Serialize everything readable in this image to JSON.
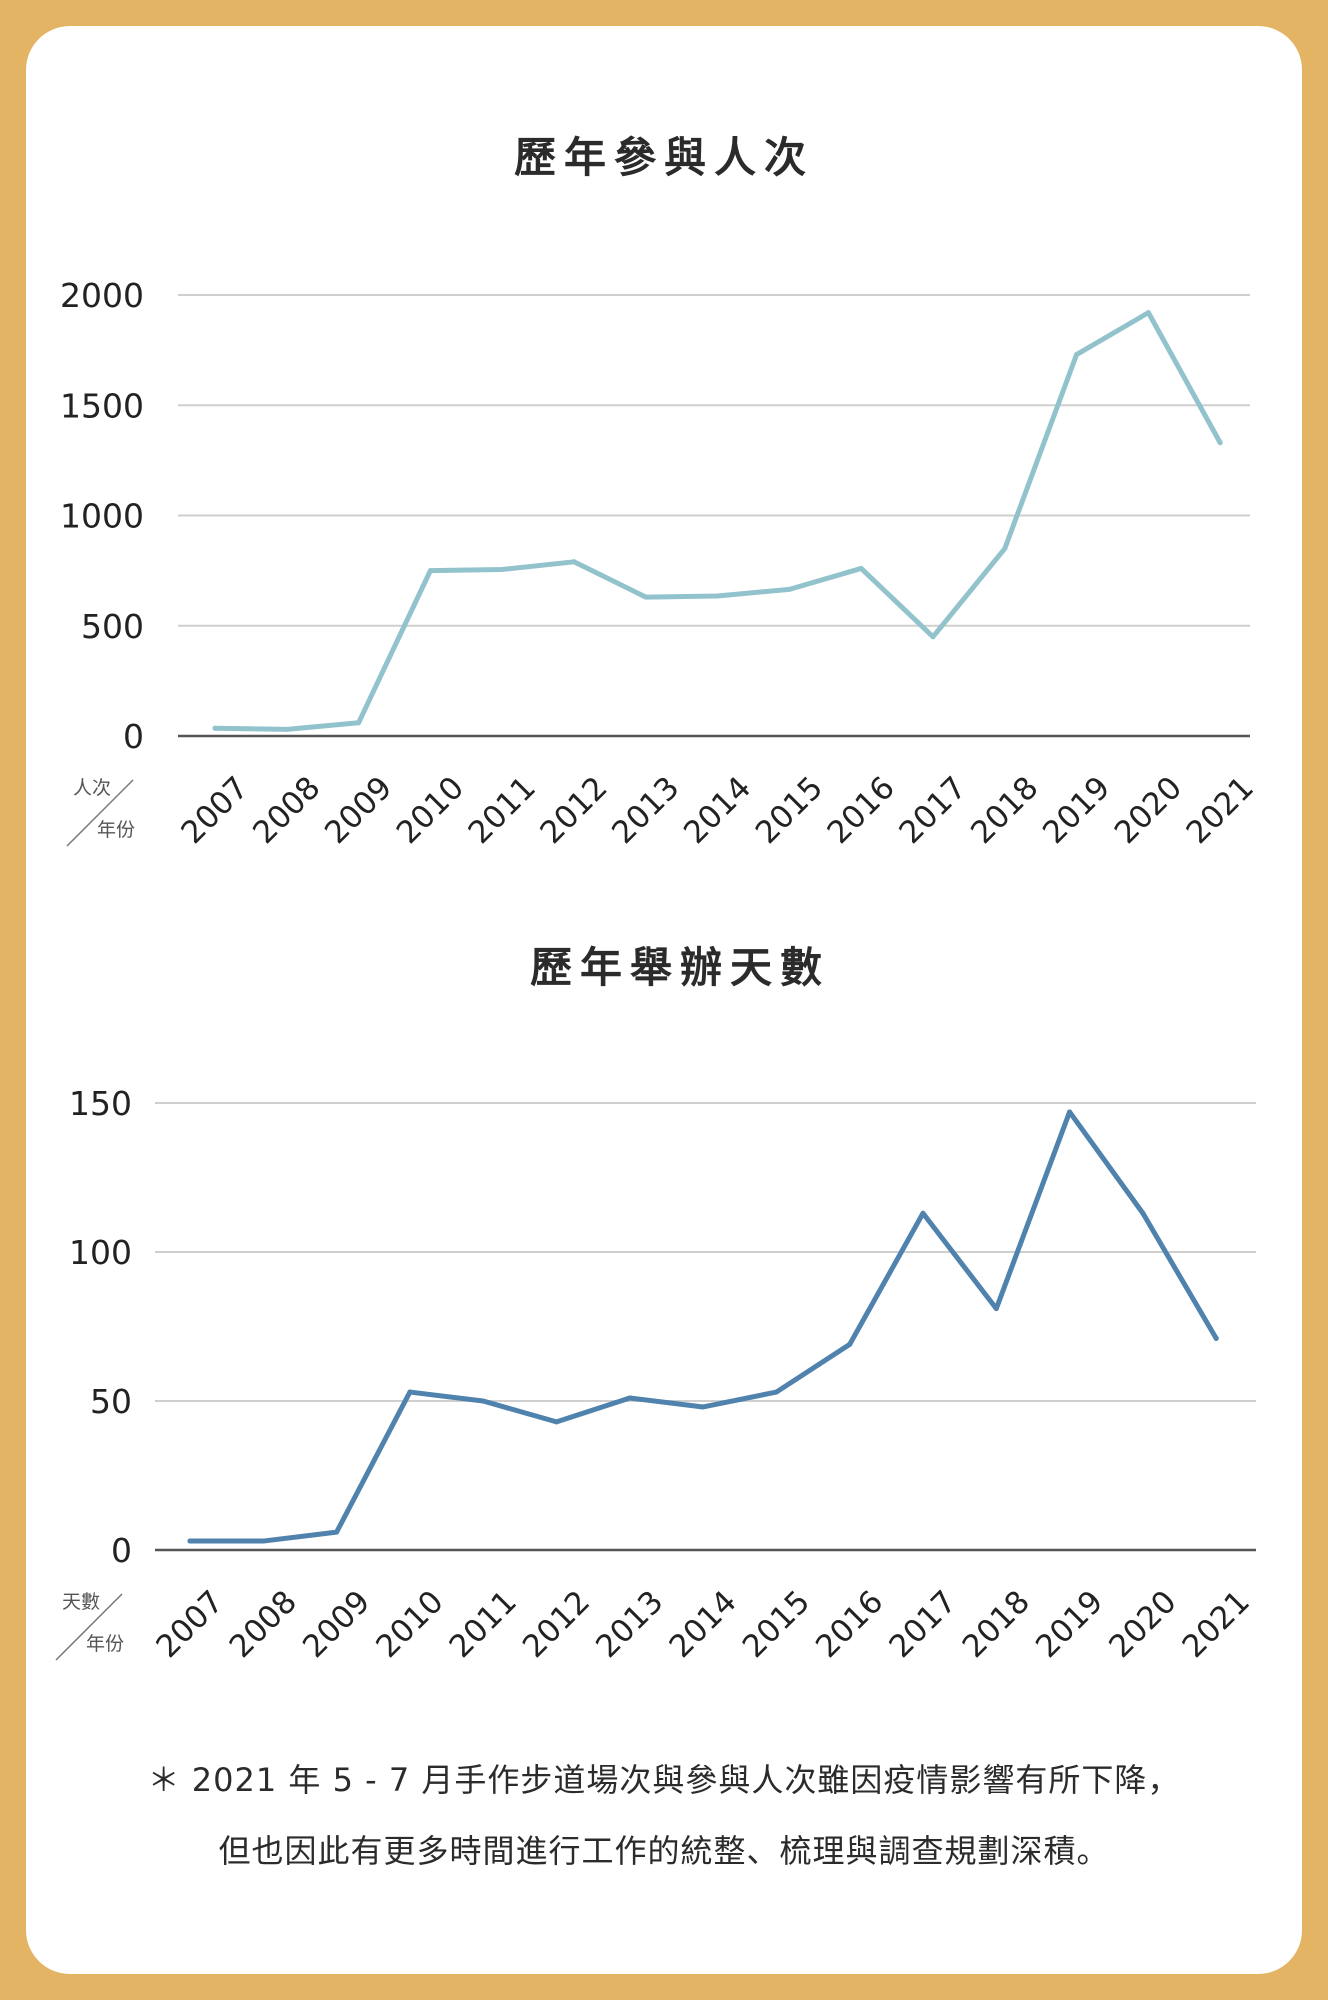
{
  "chart_data": [
    {
      "type": "line",
      "title": "歷年參與人次",
      "unit_label_top": "人次",
      "unit_label_bottom": "年份",
      "categories": [
        "2007",
        "2008",
        "2009",
        "2010",
        "2011",
        "2012",
        "2013",
        "2014",
        "2015",
        "2016",
        "2017",
        "2018",
        "2019",
        "2020",
        "2021"
      ],
      "values": [
        35,
        30,
        60,
        750,
        755,
        790,
        630,
        635,
        665,
        760,
        450,
        850,
        1730,
        1920,
        1330
      ],
      "yticks": [
        0,
        500,
        1000,
        1500,
        2000
      ],
      "ylim": [
        0,
        2000
      ],
      "color": "#92c3cd",
      "grid": true
    },
    {
      "type": "line",
      "title": "歷年舉辦天數",
      "unit_label_top": "天數",
      "unit_label_bottom": "年份",
      "categories": [
        "2007",
        "2008",
        "2009",
        "2010",
        "2011",
        "2012",
        "2013",
        "2014",
        "2015",
        "2016",
        "2017",
        "2018",
        "2019",
        "2020",
        "2021"
      ],
      "values": [
        3,
        3,
        6,
        53,
        50,
        43,
        51,
        48,
        53,
        69,
        113,
        81,
        147,
        113,
        71
      ],
      "yticks": [
        0,
        50,
        100,
        150
      ],
      "ylim": [
        0,
        150
      ],
      "color": "#4f82ac",
      "grid": true
    }
  ],
  "note": {
    "line1": "＊ 2021 年 5 - 7 月手作步道場次與參與人次雖因疫情影響有所下降，",
    "line2": "但也因此有更多時間進行工作的統整、梳理與調查規劃深積。"
  }
}
